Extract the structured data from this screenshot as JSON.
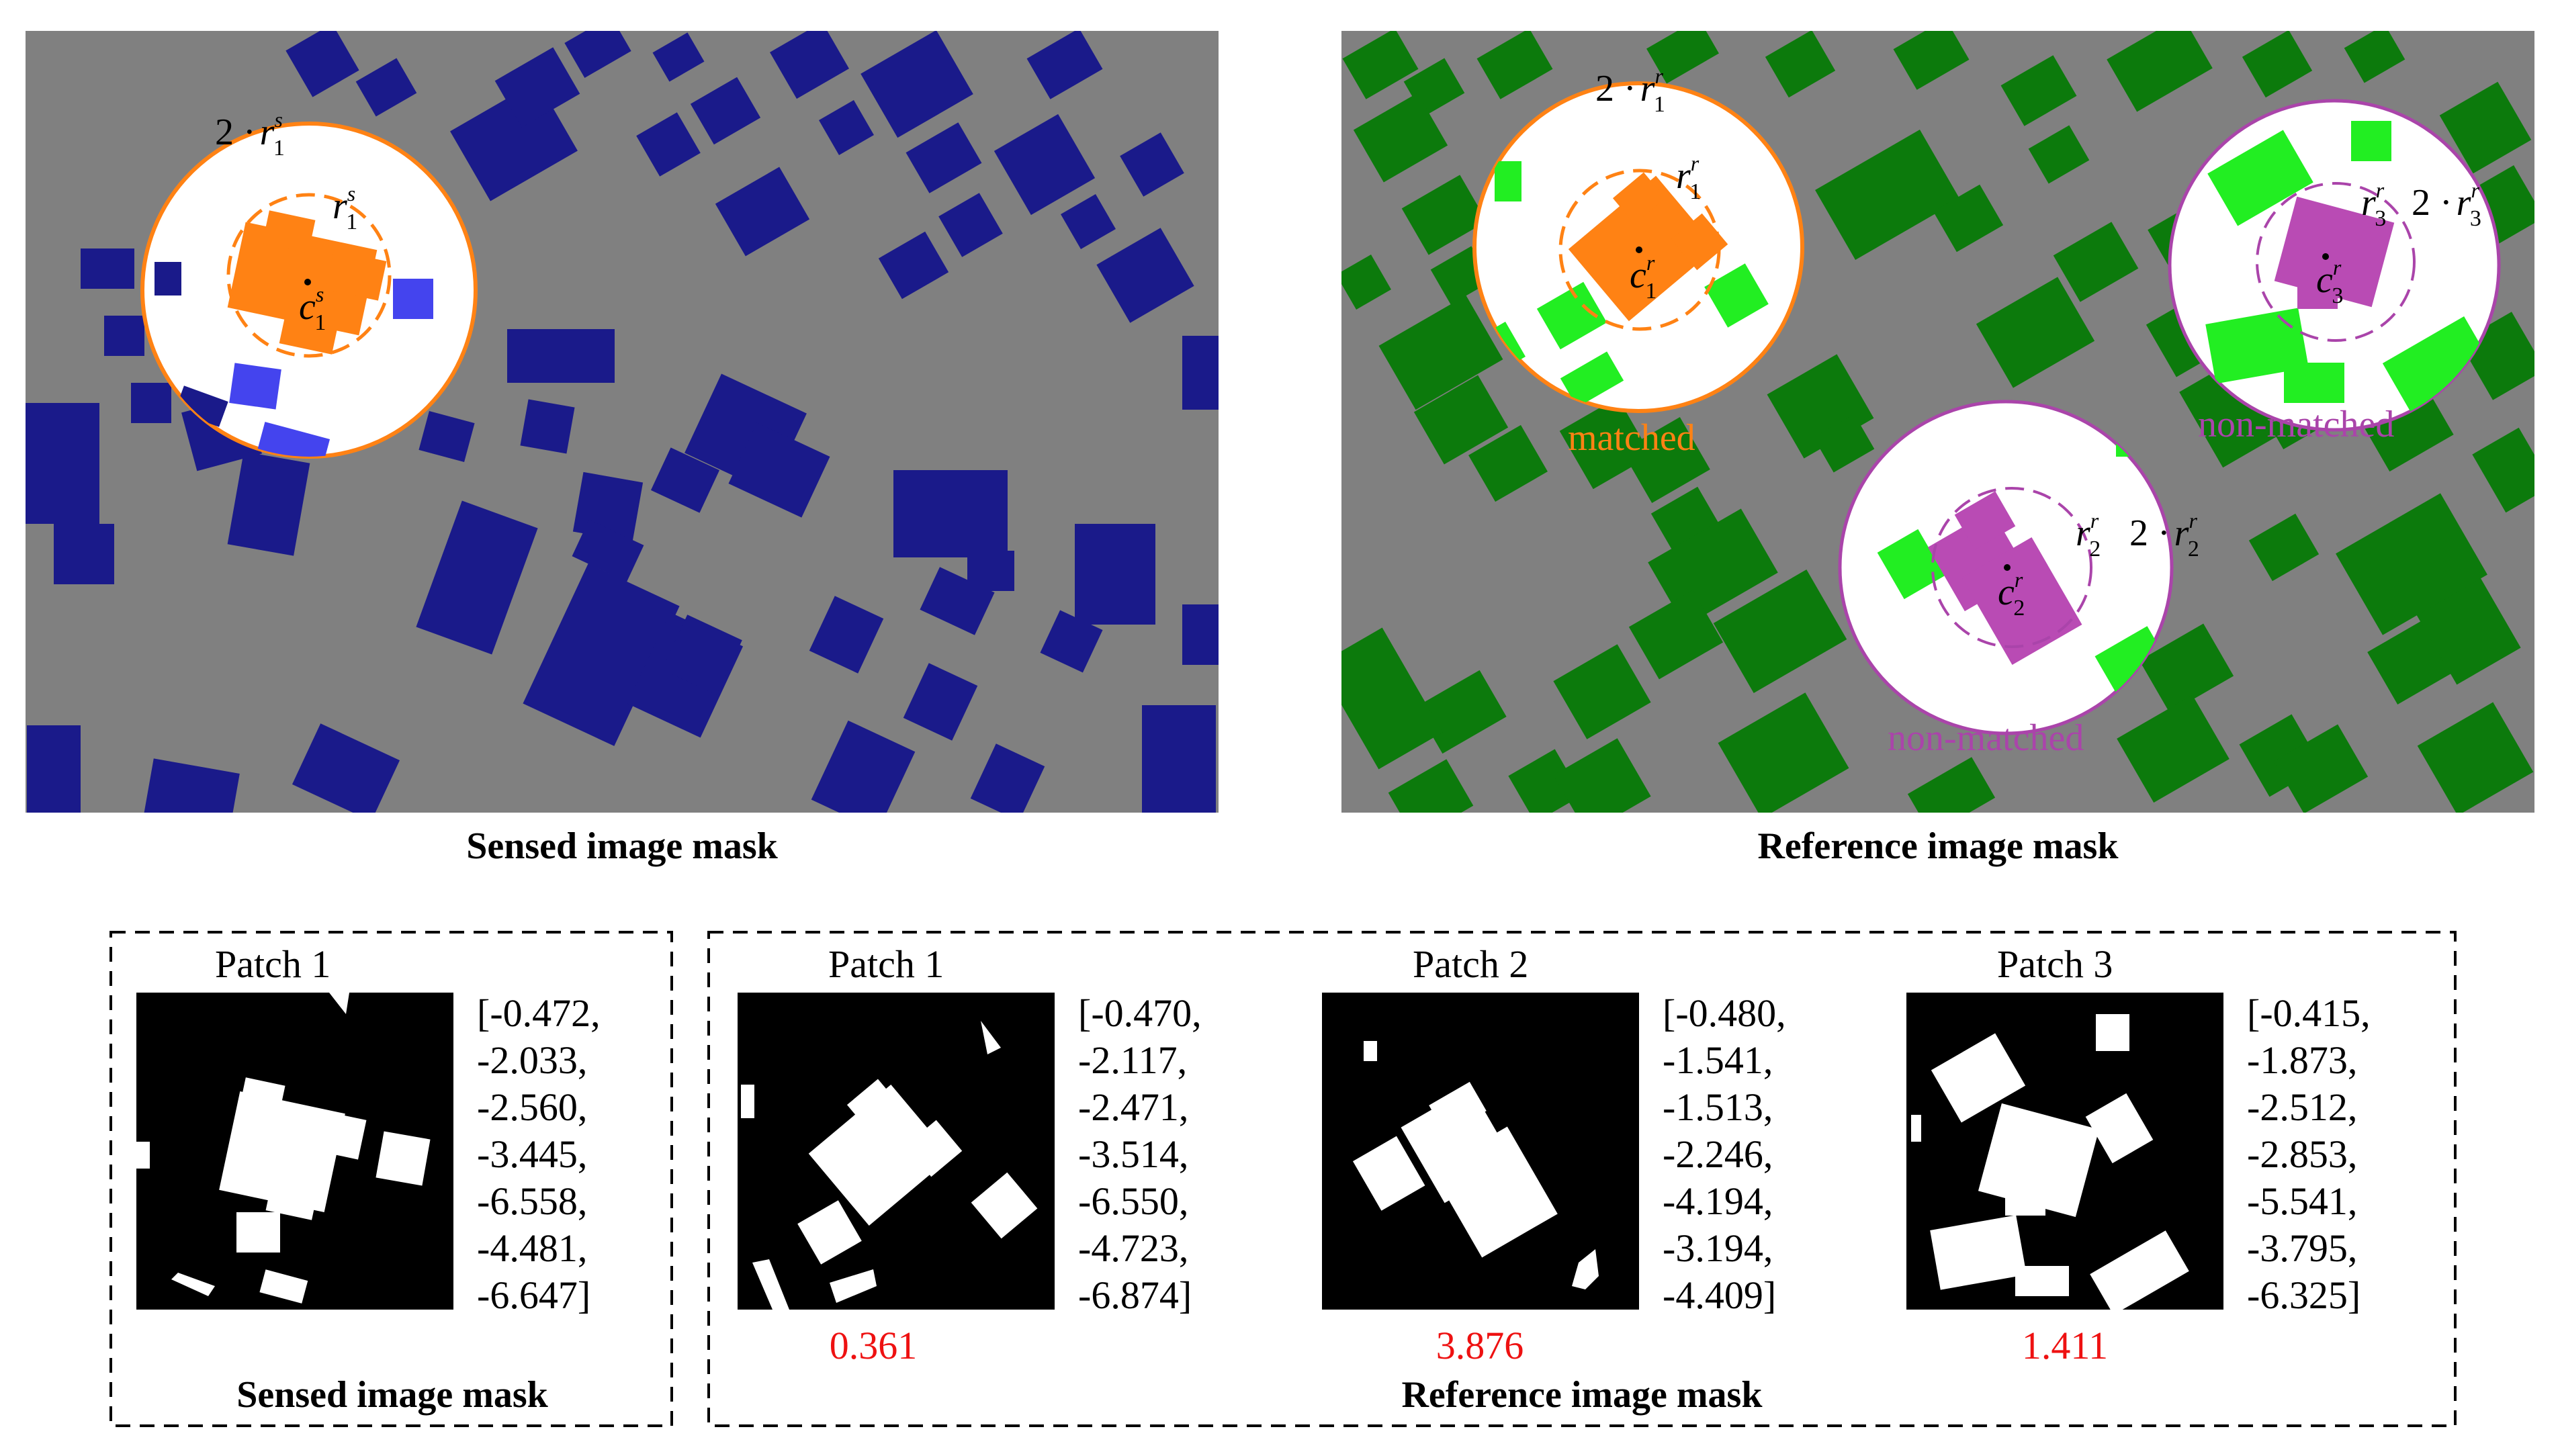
{
  "colors": {
    "ground": "#808080",
    "sensed_building": "#1a1a8a",
    "sensed_highlight": "#4444ee",
    "reference_building": "#0c7a0c",
    "reference_highlight": "#22ee22",
    "query_building": "#ff8214",
    "matched_circle": "#ff8214",
    "nonmatched_building": "#b94bb4",
    "nonmatched_circle": "#aa44aa",
    "score_text": "#ee1111"
  },
  "top": {
    "sensed_caption": "Sensed image mask",
    "reference_caption": "Reference image mask",
    "labels": {
      "matched": "matched",
      "non_matched_1": "non-matched",
      "non_matched_2": "non-matched"
    },
    "symbols": {
      "two_dot": "2 ·",
      "r": "r",
      "c": "c",
      "sup_s": "s",
      "sup_r": "r",
      "sub_1": "1",
      "sub_2": "2",
      "sub_3": "3"
    }
  },
  "bottom": {
    "sensed_caption": "Sensed image mask",
    "reference_caption": "Reference image mask",
    "sensed_patch": {
      "title": "Patch 1",
      "vector": [
        "[-0.472,",
        "-2.033,",
        "-2.560,",
        "-3.445,",
        "-6.558,",
        "-4.481,",
        "-6.647]"
      ]
    },
    "reference_patches": [
      {
        "title": "Patch 1",
        "score": "0.361",
        "vector": [
          "[-0.470,",
          "-2.117,",
          "-2.471,",
          "-3.514,",
          "-6.550,",
          "-4.723,",
          "-6.874]"
        ]
      },
      {
        "title": "Patch 2",
        "score": "3.876",
        "vector": [
          "[-0.480,",
          "-1.541,",
          "-1.513,",
          "-2.246,",
          "-4.194,",
          "-3.194,",
          "-4.409]"
        ]
      },
      {
        "title": "Patch 3",
        "score": "1.411",
        "vector": [
          "[-0.415,",
          "-1.873,",
          "-2.512,",
          "-2.853,",
          "-5.541,",
          "-3.795,",
          "-6.325]"
        ]
      }
    ]
  }
}
